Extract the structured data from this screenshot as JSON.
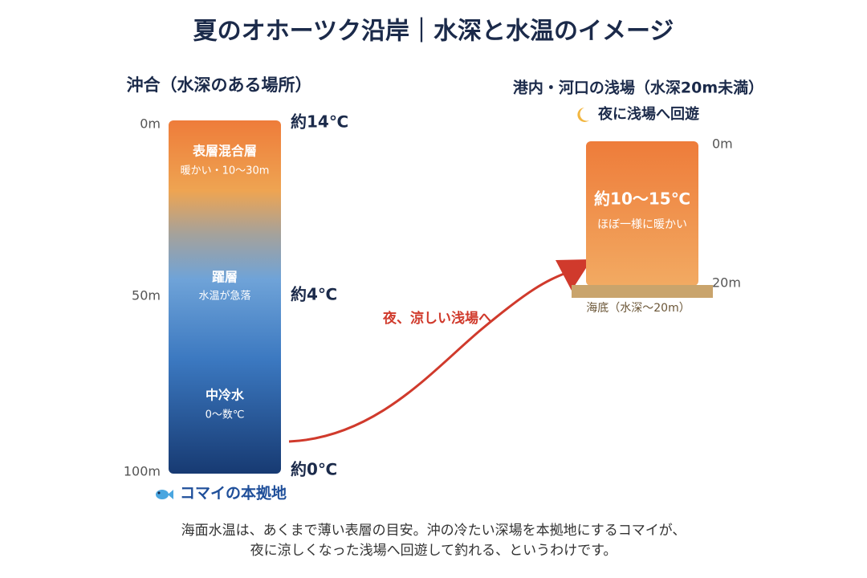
{
  "title": "夏のオホーツク沿岸｜水深と水温のイメージ",
  "offshore": {
    "heading": "沖合（水深のある場所）",
    "depths": [
      "0m",
      "50m",
      "100m"
    ],
    "temps": [
      "約14℃",
      "約4℃",
      "約0℃"
    ],
    "layers": [
      {
        "name": "表層混合層",
        "note": "暖かい・10〜30m"
      },
      {
        "name": "躍層",
        "note": "水温が急落"
      },
      {
        "name": "中冷水",
        "note": "0〜数℃"
      }
    ],
    "caption": "コマイの本拠地"
  },
  "arrow_label": "夜、涼しい浅場へ",
  "shallow": {
    "heading": "港内・河口の浅場（水深20m未満）",
    "caption": "夜に浅場へ回遊",
    "depths": [
      "0m",
      "20m"
    ],
    "temp": "約10〜15℃",
    "note": "ほぼ一様に暖かい",
    "seabed": "海底（水深〜20m）"
  },
  "footer": [
    "海面水温は、あくまで薄い表層の目安。沖の冷たい深場を本拠地にするコマイが、",
    "夜に涼しくなった浅場へ回遊して釣れる、というわけです。"
  ]
}
